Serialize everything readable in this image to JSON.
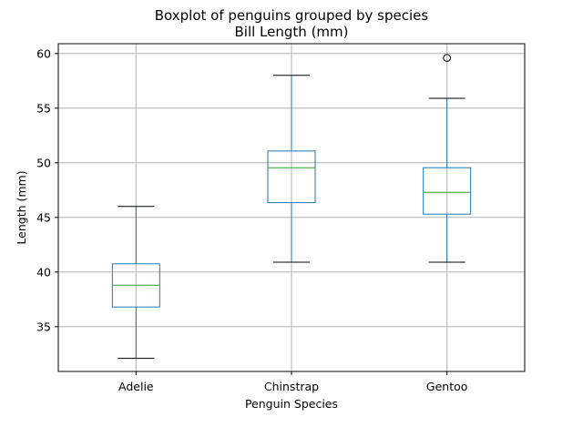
{
  "chart_data": {
    "type": "boxplot",
    "title": "Boxplot of penguins grouped by species",
    "subtitle": "Bill Length (mm)",
    "xlabel": "Penguin Species",
    "ylabel": "Length (mm)",
    "ylim": [
      30.9,
      60.9
    ],
    "yticks": [
      35,
      40,
      45,
      50,
      55,
      60
    ],
    "grid": true,
    "categories": [
      "Adelie",
      "Chinstrap",
      "Gentoo"
    ],
    "boxes": [
      {
        "category": "Adelie",
        "whisker_low": 32.1,
        "q1": 36.8,
        "median": 38.8,
        "q3": 40.75,
        "whisker_high": 46.0,
        "outliers": []
      },
      {
        "category": "Chinstrap",
        "whisker_low": 40.9,
        "q1": 46.35,
        "median": 49.55,
        "q3": 51.08,
        "whisker_high": 58.0,
        "outliers": []
      },
      {
        "category": "Gentoo",
        "whisker_low": 40.9,
        "q1": 45.3,
        "median": 47.3,
        "q3": 49.55,
        "whisker_high": 55.9,
        "outliers": [
          59.6
        ]
      }
    ],
    "colors": {
      "box": "#1f77b4",
      "median": "#2ca02c",
      "caps": "#000000",
      "grid": "#b0b0b0"
    }
  }
}
